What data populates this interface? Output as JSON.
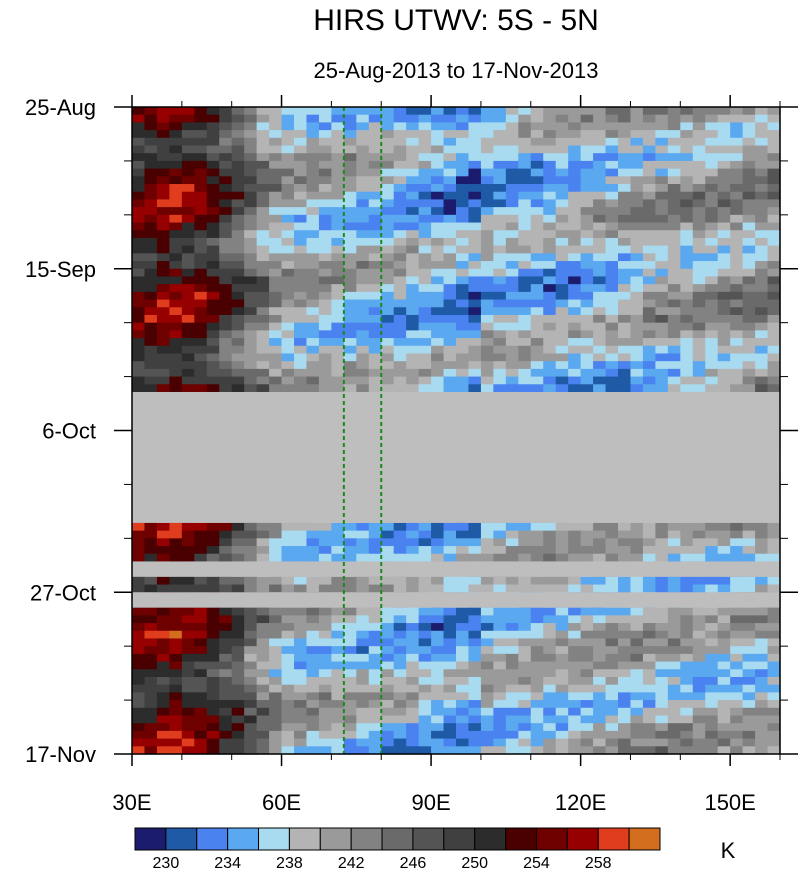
{
  "chart_data": {
    "type": "heatmap",
    "title": "HIRS UTWV: 5S - 5N",
    "subtitle": "25-Aug-2013 to 17-Nov-2013",
    "x_axis": {
      "range": [
        30,
        160
      ],
      "ticks": [
        {
          "value": 30,
          "label": "30E"
        },
        {
          "value": 60,
          "label": "60E"
        },
        {
          "value": 90,
          "label": "90E"
        },
        {
          "value": 120,
          "label": "120E"
        },
        {
          "value": 150,
          "label": "150E"
        }
      ]
    },
    "y_axis": {
      "range_days": [
        0,
        84
      ],
      "reversed": true,
      "ticks": [
        {
          "value": 0,
          "label": "25-Aug"
        },
        {
          "value": 21,
          "label": "15-Sep"
        },
        {
          "value": 42,
          "label": "6-Oct"
        },
        {
          "value": 63,
          "label": "27-Oct"
        },
        {
          "value": 84,
          "label": "17-Nov"
        }
      ]
    },
    "reference_lines_lon": [
      72.5,
      80
    ],
    "reference_line_color": "#1a8a1a",
    "missing_color": "#bebebe",
    "missing_bands_days": [
      [
        37,
        54
      ],
      [
        59,
        61
      ],
      [
        63,
        65
      ]
    ],
    "colorbar": {
      "unit": "K",
      "levels": [
        228,
        230,
        232,
        234,
        236,
        238,
        240,
        242,
        244,
        246,
        248,
        250,
        252,
        254,
        256,
        258,
        260
      ],
      "labels": [
        "230",
        "234",
        "238",
        "242",
        "246",
        "250",
        "254",
        "258"
      ],
      "colors": [
        "#1c1c6e",
        "#1e5aa6",
        "#4a82f0",
        "#5aa8f0",
        "#a8daf0",
        "#b4b4b4",
        "#9a9a9a",
        "#828282",
        "#6a6a6a",
        "#545454",
        "#404040",
        "#2c2c2c",
        "#4a0000",
        "#6e0000",
        "#960000",
        "#e03c1e",
        "#d26e1e"
      ]
    }
  }
}
